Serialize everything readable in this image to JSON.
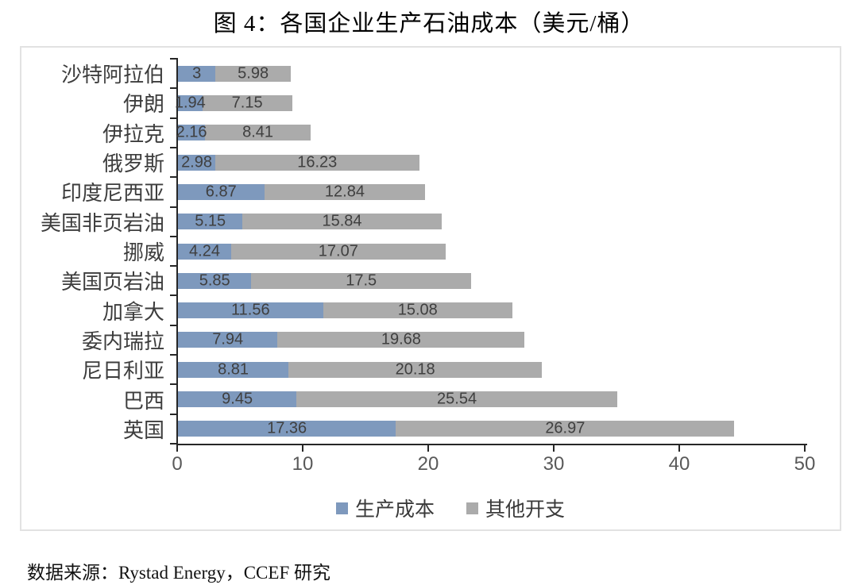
{
  "page": {
    "title": "图 4：各国企业生产石油成本（美元/桶）",
    "source": "数据来源：Rystad Energy，CCEF 研究"
  },
  "chart_data": {
    "type": "bar",
    "orientation": "horizontal",
    "stacked": true,
    "title": "图 4：各国企业生产石油成本（美元/桶）",
    "categories": [
      "沙特阿拉伯",
      "伊朗",
      "伊拉克",
      "俄罗斯",
      "印度尼西亚",
      "美国非页岩油",
      "挪威",
      "美国页岩油",
      "加拿大",
      "委内瑞拉",
      "尼日利亚",
      "巴西",
      "英国"
    ],
    "series": [
      {
        "name": "生产成本",
        "color": "#7e99bd",
        "values": [
          3,
          1.94,
          2.16,
          2.98,
          6.87,
          5.15,
          4.24,
          5.85,
          11.56,
          7.94,
          8.81,
          9.45,
          17.36
        ]
      },
      {
        "name": "其他开支",
        "color": "#ababab",
        "values": [
          5.98,
          7.15,
          8.41,
          16.23,
          12.84,
          15.84,
          17.07,
          17.5,
          15.08,
          19.68,
          20.18,
          25.54,
          26.97
        ]
      }
    ],
    "x_axis": {
      "min": 0,
      "max": 50,
      "ticks": [
        0,
        10,
        20,
        30,
        40,
        50
      ]
    },
    "value_labels": true,
    "legend_position": "bottom",
    "grid": false,
    "colors": {
      "axis": "#262626",
      "tick_label": "#595959",
      "value_label": "#3f3f3f",
      "category_label": "#3d3d3d",
      "box_border": "#e2e2e2"
    }
  }
}
